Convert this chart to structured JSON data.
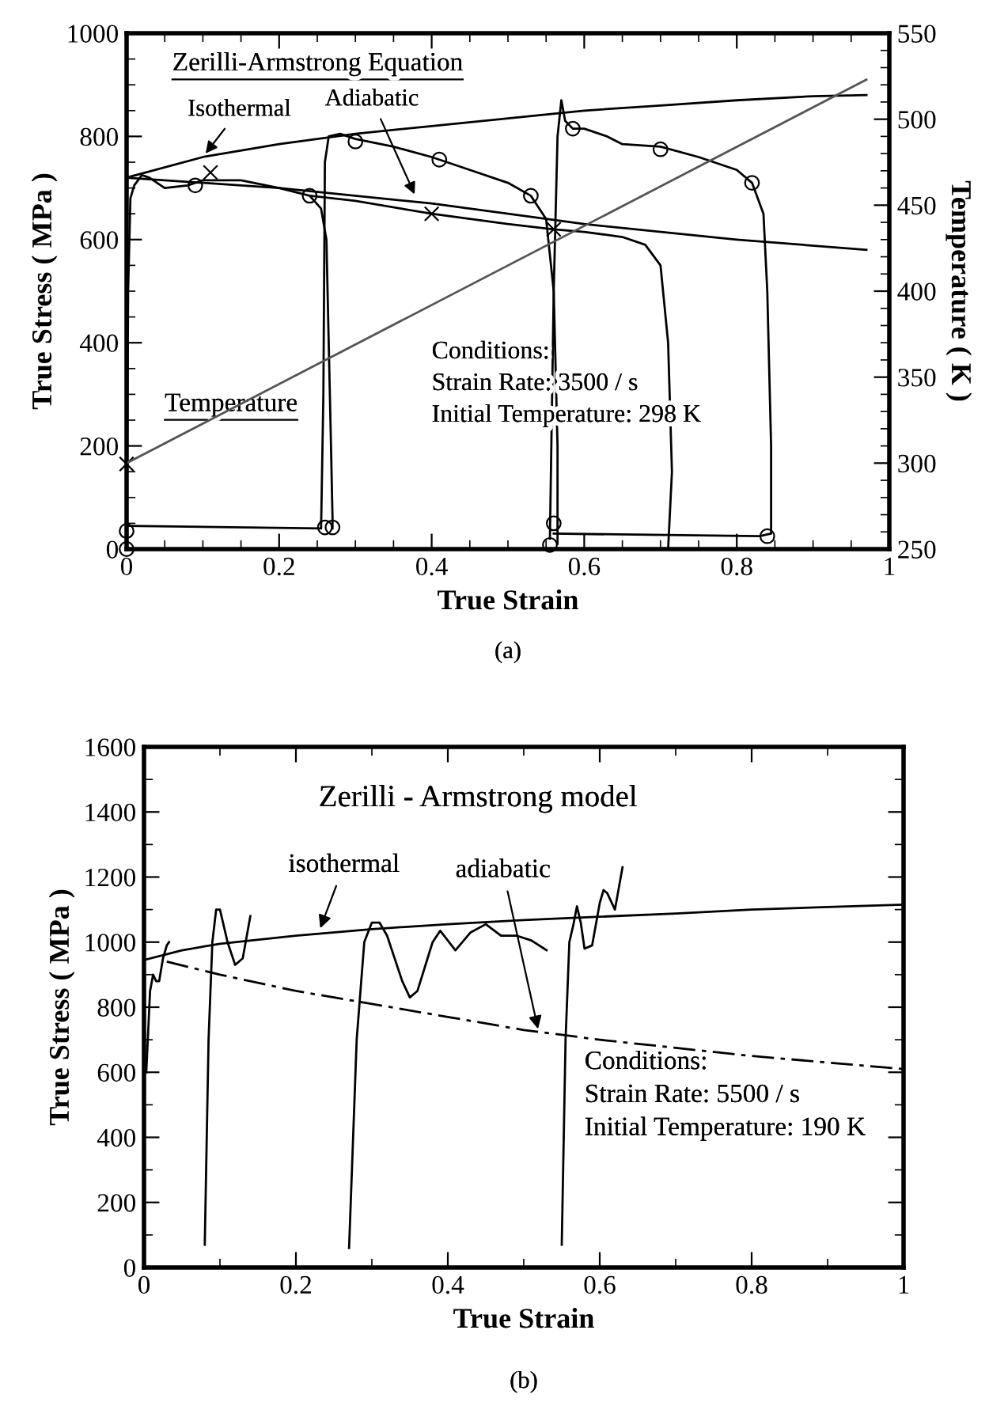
{
  "chart_data": [
    {
      "type": "line",
      "xlabel": "True Strain",
      "ylabel": "True Stress ( MPa )",
      "y2label": "Temperature ( K )",
      "xlim": [
        0,
        1
      ],
      "xticks": [
        0,
        0.2,
        0.4,
        0.6,
        0.8,
        1
      ],
      "ylim": [
        0,
        1000
      ],
      "yticks": [
        0,
        200,
        400,
        600,
        800,
        1000
      ],
      "y2lim": [
        250,
        550
      ],
      "y2ticks": [
        250,
        300,
        350,
        400,
        450,
        500,
        550
      ],
      "grid": false,
      "legend": false,
      "line_style": "solid",
      "annotations": [
        "Zerilli-Armstrong Equation",
        {
          "text": "Isothermal",
          "x": 0.1,
          "y": 760
        },
        {
          "text": "Adiabatic",
          "x": 0.38,
          "y": 680
        },
        "Temperature",
        "Conditions:\nStrain Rate: 3500 / s\nInitial Temperature: 298 K",
        "(a)"
      ],
      "series": [
        {
          "color": "#000000",
          "marker": "none",
          "x": [
            0,
            0.1,
            0.2,
            0.3,
            0.4,
            0.5,
            0.6,
            0.7,
            0.8,
            0.9,
            0.97
          ],
          "values": [
            720,
            760,
            785,
            805,
            820,
            835,
            850,
            860,
            870,
            878,
            880
          ]
        },
        {
          "color": "#000000",
          "marker": "none",
          "x": [
            0,
            0.2,
            0.4,
            0.6,
            0.8,
            0.97
          ],
          "values": [
            720,
            700,
            670,
            630,
            600,
            580
          ]
        },
        {
          "color": "#555555",
          "marker": "none",
          "axis": "y2",
          "x": [
            0,
            0.97
          ],
          "values": [
            300,
            523
          ]
        },
        {
          "color": "#000000",
          "marker": "none",
          "x": [
            0,
            0.002,
            0.005,
            0.01,
            0.02,
            0.03,
            0.05,
            0.08,
            0.1,
            0.15,
            0.2,
            0.24,
            0.255,
            0.262,
            0.265,
            0.268,
            0.27,
            0.27
          ],
          "values": [
            0,
            500,
            680,
            705,
            725,
            720,
            700,
            705,
            715,
            715,
            700,
            685,
            660,
            600,
            400,
            200,
            60,
            40
          ]
        },
        {
          "color": "#000000",
          "marker": "none",
          "x": [
            0.24,
            0.3,
            0.4,
            0.5,
            0.56,
            0.6,
            0.65,
            0.68,
            0.7,
            0.71,
            0.715,
            0.71
          ],
          "values": [
            685,
            675,
            650,
            630,
            620,
            615,
            605,
            590,
            550,
            400,
            150,
            0
          ]
        },
        {
          "color": "#000000",
          "marker": "none",
          "x": [
            0,
            0.255,
            0.258,
            0.26,
            0.265,
            0.28,
            0.3,
            0.35,
            0.4,
            0.45,
            0.5,
            0.53,
            0.55,
            0.56,
            0.565,
            0.565
          ],
          "values": [
            45,
            40,
            300,
            750,
            800,
            805,
            795,
            780,
            760,
            735,
            710,
            685,
            640,
            500,
            200,
            10
          ]
        },
        {
          "color": "#000000",
          "marker": "none",
          "x": [
            0.555,
            0.56,
            0.565,
            0.57,
            0.575,
            0.585,
            0.6,
            0.63,
            0.65,
            0.7,
            0.75,
            0.8,
            0.82,
            0.835,
            0.84,
            0.845,
            0.845,
            0.83,
            0.56
          ],
          "values": [
            20,
            500,
            800,
            870,
            830,
            815,
            815,
            800,
            785,
            780,
            760,
            735,
            710,
            650,
            500,
            200,
            30,
            25,
            30
          ]
        },
        {
          "type": "scatter",
          "color": "#000000",
          "marker": "circle",
          "x": [
            0,
            0,
            0.09,
            0.24,
            0.26,
            0.27,
            0.3,
            0.41,
            0.53,
            0.56,
            0.555,
            0.585,
            0.7,
            0.82,
            0.84
          ],
          "values": [
            0,
            35,
            705,
            685,
            42,
            42,
            790,
            755,
            685,
            50,
            8,
            815,
            775,
            710,
            25
          ]
        },
        {
          "type": "scatter",
          "color": "#000000",
          "marker": "cross",
          "x": [
            0,
            0.11,
            0.4,
            0.56
          ],
          "values": [
            165,
            730,
            650,
            620
          ]
        }
      ]
    },
    {
      "type": "line",
      "xlabel": "True Strain",
      "ylabel": "True Stress ( MPa )",
      "xlim": [
        0,
        1
      ],
      "xticks": [
        0,
        0.2,
        0.4,
        0.6,
        0.8,
        1
      ],
      "ylim": [
        0,
        1600
      ],
      "yticks": [
        0,
        200,
        400,
        600,
        800,
        1000,
        1200,
        1400,
        1600
      ],
      "grid": false,
      "legend": false,
      "line_style": "solid",
      "annotations": [
        "Zerilli - Armstrong model",
        {
          "text": "isothermal",
          "x": 0.23,
          "y": 1030
        },
        {
          "text": "adiabatic",
          "x": 0.52,
          "y": 720
        },
        "Conditions:\nStrain Rate: 5500 / s\nInitial Temperature: 190 K",
        "(b)"
      ],
      "series": [
        {
          "color": "#000000",
          "x": [
            0,
            0.05,
            0.1,
            0.2,
            0.3,
            0.4,
            0.5,
            0.6,
            0.7,
            0.8,
            0.9,
            1
          ],
          "values": [
            945,
            975,
            995,
            1020,
            1040,
            1055,
            1068,
            1078,
            1088,
            1100,
            1108,
            1115
          ]
        },
        {
          "color": "#000000",
          "line_style": "dashed",
          "x": [
            0.03,
            0.1,
            0.2,
            0.3,
            0.4,
            0.5,
            0.6,
            0.7,
            0.8,
            0.9,
            1
          ],
          "values": [
            940,
            900,
            850,
            810,
            770,
            730,
            700,
            675,
            650,
            630,
            610
          ]
        },
        {
          "color": "#000000",
          "x": [
            0.003,
            0.008,
            0.012,
            0.016,
            0.02,
            0.025,
            0.03,
            0.033
          ],
          "values": [
            600,
            850,
            900,
            880,
            880,
            950,
            990,
            1000
          ]
        },
        {
          "color": "#000000",
          "x": [
            0.08,
            0.085,
            0.09,
            0.095,
            0.1,
            0.11,
            0.12,
            0.13,
            0.14
          ],
          "values": [
            70,
            700,
            1000,
            1100,
            1100,
            1000,
            930,
            950,
            1080
          ]
        },
        {
          "color": "#000000",
          "x": [
            0.27,
            0.28,
            0.29,
            0.3,
            0.31,
            0.32,
            0.34,
            0.35,
            0.36,
            0.38,
            0.39,
            0.41,
            0.43,
            0.45,
            0.47,
            0.49,
            0.51,
            0.53
          ],
          "values": [
            60,
            700,
            1000,
            1060,
            1060,
            1020,
            880,
            830,
            850,
            1000,
            1035,
            975,
            1030,
            1055,
            1020,
            1020,
            1005,
            975
          ]
        },
        {
          "color": "#000000",
          "x": [
            0.55,
            0.555,
            0.56,
            0.565,
            0.57,
            0.575,
            0.58,
            0.59,
            0.6,
            0.605,
            0.61,
            0.62,
            0.63
          ],
          "values": [
            70,
            700,
            1000,
            1050,
            1110,
            1060,
            980,
            990,
            1120,
            1160,
            1150,
            1100,
            1230
          ]
        }
      ]
    }
  ]
}
